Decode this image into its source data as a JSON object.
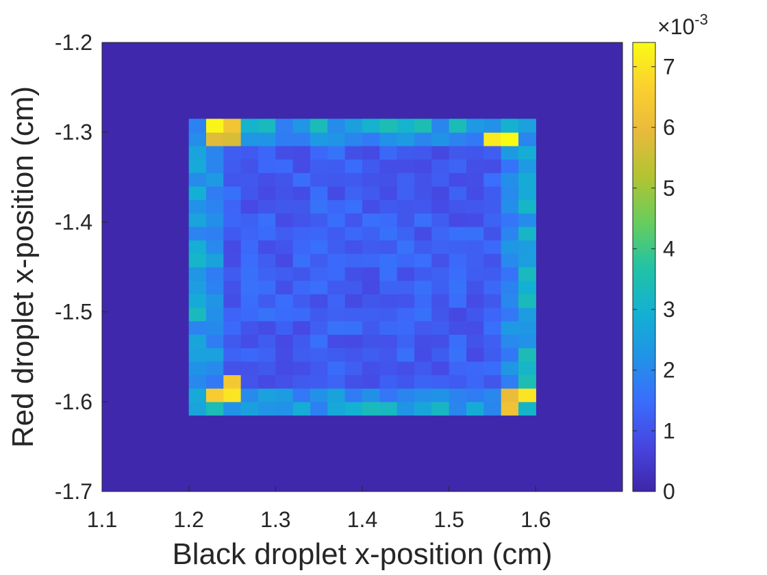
{
  "chart_data": {
    "type": "heatmap",
    "title": "",
    "xlabel": "Black droplet x-position (cm)",
    "ylabel": "Red droplet x-position (cm)",
    "xlim": [
      1.1,
      1.7
    ],
    "ylim": [
      -1.7,
      -1.2
    ],
    "xticks": [
      1.1,
      1.2,
      1.3,
      1.4,
      1.5,
      1.6
    ],
    "xtick_labels": [
      "1.1",
      "1.2",
      "1.3",
      "1.4",
      "1.5",
      "1.6"
    ],
    "yticks": [
      -1.2,
      -1.3,
      -1.4,
      -1.5,
      -1.6,
      -1.7
    ],
    "ytick_labels": [
      "-1.2",
      "-1.3",
      "-1.4",
      "-1.5",
      "-1.6",
      "-1.7"
    ],
    "grid": false,
    "colormap": "parula",
    "colorbar": {
      "range": [
        0,
        7.4
      ],
      "ticks": [
        0,
        1,
        2,
        3,
        4,
        5,
        6,
        7
      ],
      "tick_labels": [
        "0",
        "1",
        "2",
        "3",
        "4",
        "5",
        "6",
        "7"
      ],
      "exponent_label": "×10",
      "exponent": "-3"
    },
    "data_region": {
      "x_range": [
        1.2,
        1.6
      ],
      "y_range": [
        -1.615,
        -1.285
      ],
      "background_value": 0.05,
      "interior_value_range": [
        0.8,
        1.6
      ],
      "edge_value_range": [
        1.8,
        3.5
      ]
    },
    "hotspots": [
      {
        "x": 1.22,
        "y": -1.295,
        "value": 7.3
      },
      {
        "x": 1.24,
        "y": -1.295,
        "value": 6.3
      },
      {
        "x": 1.22,
        "y": -1.31,
        "value": 5.8
      },
      {
        "x": 1.24,
        "y": -1.31,
        "value": 5.7
      },
      {
        "x": 1.575,
        "y": -1.31,
        "value": 7.4
      },
      {
        "x": 1.555,
        "y": -1.31,
        "value": 7.1
      },
      {
        "x": 1.22,
        "y": -1.595,
        "value": 6.5
      },
      {
        "x": 1.24,
        "y": -1.595,
        "value": 7.0
      },
      {
        "x": 1.24,
        "y": -1.58,
        "value": 6.4
      },
      {
        "x": 1.56,
        "y": -1.595,
        "value": 6.0
      },
      {
        "x": 1.58,
        "y": -1.595,
        "value": 7.0
      },
      {
        "x": 1.56,
        "y": -1.61,
        "value": 6.2
      }
    ]
  }
}
